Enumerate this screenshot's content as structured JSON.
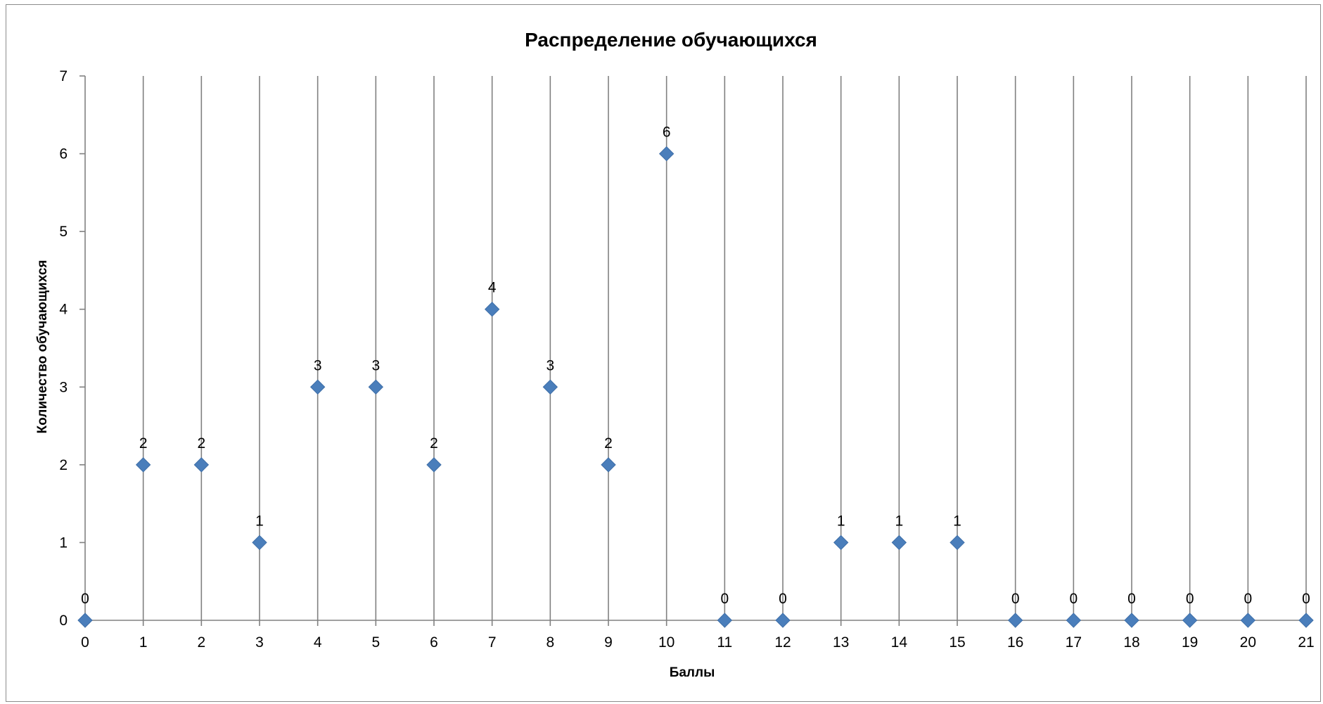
{
  "chart_data": {
    "type": "scatter",
    "title": "Распределение обучающихся",
    "xlabel": "Баллы",
    "ylabel": "Количество обучающихся",
    "x": [
      0,
      1,
      2,
      3,
      4,
      5,
      6,
      7,
      8,
      9,
      10,
      11,
      12,
      13,
      14,
      15,
      16,
      17,
      18,
      19,
      20,
      21
    ],
    "y": [
      0,
      2,
      2,
      1,
      3,
      3,
      2,
      4,
      3,
      2,
      6,
      0,
      0,
      1,
      1,
      1,
      0,
      0,
      0,
      0,
      0,
      0
    ],
    "xlim": [
      0,
      21
    ],
    "ylim": [
      0,
      7
    ],
    "yticks": [
      0,
      1,
      2,
      3,
      4,
      5,
      6,
      7
    ],
    "xticks": [
      0,
      1,
      2,
      3,
      4,
      5,
      6,
      7,
      8,
      9,
      10,
      11,
      12,
      13,
      14,
      15,
      16,
      17,
      18,
      19,
      20,
      21
    ],
    "grid": "vertical",
    "legend": "none",
    "marker": "diamond",
    "series_color": "#4a7ebb",
    "grid_color": "#808080"
  }
}
